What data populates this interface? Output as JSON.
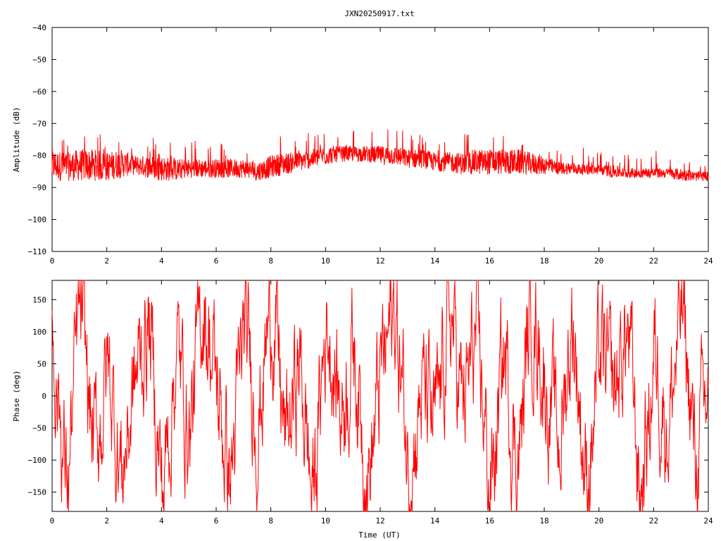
{
  "title": "JXN20250917.txt",
  "chart_data": [
    {
      "type": "line",
      "ylabel": "Amplitude (dB)",
      "xlabel": "",
      "xlim": [
        0,
        24
      ],
      "ylim": [
        -110,
        -40
      ],
      "xticks": [
        0,
        2,
        4,
        6,
        8,
        10,
        12,
        14,
        16,
        18,
        20,
        22,
        24
      ],
      "yticks": [
        -40,
        -50,
        -60,
        -70,
        -80,
        -90,
        -100,
        -110
      ],
      "grid": false,
      "series": [
        {
          "color": "#ff0000",
          "x": [
            0,
            0.5,
            1,
            1.5,
            2,
            2.5,
            3,
            3.5,
            4,
            4.5,
            5,
            5.5,
            6,
            6.5,
            7,
            7.5,
            8,
            8.5,
            9,
            9.5,
            10,
            10.5,
            11,
            11.5,
            12,
            12.5,
            13,
            13.5,
            14,
            14.5,
            15,
            15.5,
            16,
            16.5,
            17,
            17.5,
            18,
            18.5,
            19,
            19.5,
            20,
            20.5,
            21,
            21.5,
            22,
            22.5,
            23,
            23.5,
            24
          ],
          "y_low": [
            -88,
            -88,
            -88,
            -88,
            -88,
            -87,
            -86,
            -87,
            -88,
            -88,
            -87,
            -87,
            -87,
            -87,
            -87,
            -88,
            -87,
            -86,
            -85,
            -84,
            -83,
            -82,
            -82,
            -82,
            -83,
            -83,
            -84,
            -84,
            -85,
            -85,
            -86,
            -86,
            -86,
            -86,
            -86,
            -86,
            -86,
            -86,
            -86,
            -86,
            -86,
            -87,
            -87,
            -87,
            -87,
            -87,
            -88,
            -88,
            -88
          ],
          "y_high": [
            -78,
            -79,
            -78,
            -78,
            -79,
            -78,
            -80,
            -80,
            -80,
            -81,
            -81,
            -81,
            -81,
            -81,
            -81,
            -82,
            -80,
            -79,
            -79,
            -78,
            -77,
            -77,
            -77,
            -77,
            -77,
            -77,
            -78,
            -78,
            -79,
            -79,
            -79,
            -78,
            -78,
            -78,
            -78,
            -79,
            -80,
            -82,
            -82,
            -83,
            -83,
            -83,
            -84,
            -84,
            -84,
            -84,
            -84,
            -85,
            -85
          ]
        }
      ]
    },
    {
      "type": "line",
      "ylabel": "Phase (deg)",
      "xlabel": "Time (UT)",
      "xlim": [
        0,
        24
      ],
      "ylim": [
        -180,
        180
      ],
      "xticks": [
        0,
        2,
        4,
        6,
        8,
        10,
        12,
        14,
        16,
        18,
        20,
        22,
        24
      ],
      "yticks": [
        150,
        100,
        50,
        0,
        -50,
        -100,
        -150
      ],
      "grid": false,
      "series": [
        {
          "color": "#ff0000",
          "x": [
            0,
            0.5,
            1,
            1.5,
            2,
            2.5,
            3,
            3.5,
            4,
            4.5,
            5,
            5.5,
            6,
            6.5,
            7,
            7.5,
            8,
            8.5,
            9,
            9.5,
            10,
            10.5,
            11,
            11.5,
            12,
            12.5,
            13,
            13.5,
            14,
            14.5,
            15,
            15.5,
            16,
            16.5,
            17,
            17.5,
            18,
            18.5,
            19,
            19.5,
            20,
            20.5,
            21,
            21.5,
            22,
            22.5,
            23,
            23.5,
            24
          ],
          "y": [
            100,
            -150,
            150,
            -100,
            50,
            -120,
            20,
            120,
            -160,
            80,
            -60,
            160,
            0,
            -130,
            110,
            -40,
            170,
            -90,
            60,
            -170,
            130,
            -20,
            90,
            -150,
            40,
            140,
            -110,
            10,
            -70,
            150,
            -30,
            100,
            -160,
            70,
            -120,
            160,
            20,
            -80,
            130,
            -140,
            60,
            -10,
            110,
            -170,
            80,
            -50,
            150,
            -120,
            30
          ],
          "style": "dense random-walk phase wrapping between -180 and 180"
        }
      ]
    }
  ]
}
